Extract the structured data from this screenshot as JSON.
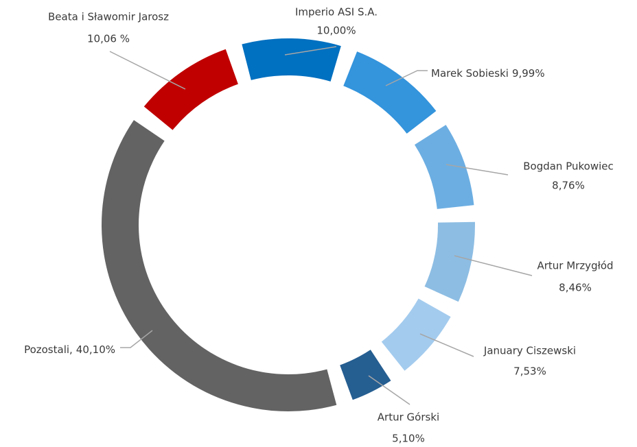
{
  "chart_data": {
    "type": "donut",
    "categories": [
      "Imperio ASI S.A.",
      "Marek Sobieski",
      "Bogdan Pukowiec",
      "Artur Mrzygłód",
      "January Ciszewski",
      "Artur Górski",
      "Pozostali,",
      "Beata i Sławomir Jarosz"
    ],
    "values": [
      10.0,
      9.99,
      8.76,
      8.46,
      7.53,
      5.1,
      40.1,
      10.06
    ],
    "value_labels": [
      "10,00%",
      "9,99%",
      "8,76%",
      "8,46%",
      "7,53%",
      "5,10%",
      "40,10%",
      "10,06 %"
    ],
    "colors": [
      "#0070c0",
      "#3494dc",
      "#6caee2",
      "#8dbde3",
      "#a3cbee",
      "#255e91",
      "#636363",
      "#c00000"
    ]
  }
}
